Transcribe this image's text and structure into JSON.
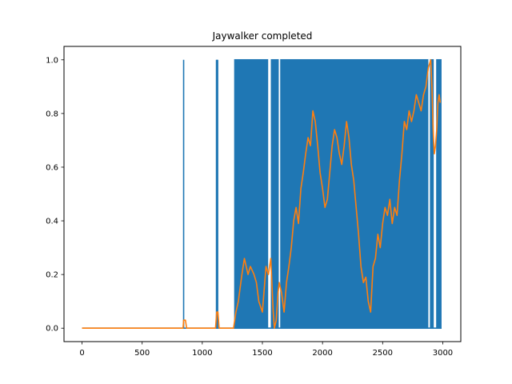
{
  "chart_data": {
    "type": "line",
    "title": "Jaywalker completed",
    "xlabel": "",
    "ylabel": "",
    "xlim": [
      -150,
      3150
    ],
    "ylim": [
      -0.05,
      1.05
    ],
    "x_ticks": [
      0,
      500,
      1000,
      1500,
      2000,
      2500,
      3000
    ],
    "x_tick_labels": [
      "0",
      "500",
      "1000",
      "1500",
      "2000",
      "2500",
      "3000"
    ],
    "y_ticks": [
      0.0,
      0.2,
      0.4,
      0.6,
      0.8,
      1.0
    ],
    "y_tick_labels": [
      "0.0",
      "0.2",
      "0.4",
      "0.6",
      "0.8",
      "1.0"
    ],
    "grid": false,
    "legend": "none",
    "series": [
      {
        "color": "#1f77b4",
        "style": "binary spikes (0/1 per episode)",
        "x_range": [
          0,
          2990
        ],
        "spikes_at": [
          845,
          1118,
          1123,
          1128
        ],
        "dense_regions": [
          [
            1265,
            1548
          ],
          [
            1570,
            1636
          ],
          [
            1648,
            2880
          ],
          [
            2893,
            2925
          ],
          [
            2945,
            2990
          ]
        ],
        "gaps": [
          [
            1548,
            1570
          ],
          [
            1636,
            1648
          ],
          [
            2880,
            2893
          ],
          [
            2925,
            2945
          ]
        ]
      },
      {
        "color": "#ff7f0e",
        "style": "moving average",
        "x": [
          0,
          840,
          845,
          860,
          870,
          1110,
          1120,
          1130,
          1140,
          1260,
          1280,
          1300,
          1330,
          1350,
          1380,
          1400,
          1430,
          1450,
          1470,
          1500,
          1530,
          1550,
          1570,
          1590,
          1600,
          1615,
          1630,
          1640,
          1660,
          1680,
          1700,
          1720,
          1740,
          1760,
          1780,
          1800,
          1820,
          1840,
          1860,
          1880,
          1900,
          1920,
          1940,
          1960,
          1980,
          2000,
          2020,
          2040,
          2060,
          2080,
          2100,
          2120,
          2140,
          2160,
          2180,
          2200,
          2220,
          2240,
          2260,
          2280,
          2300,
          2320,
          2340,
          2360,
          2380,
          2400,
          2420,
          2440,
          2460,
          2480,
          2500,
          2520,
          2540,
          2560,
          2580,
          2600,
          2620,
          2640,
          2660,
          2680,
          2700,
          2720,
          2740,
          2760,
          2780,
          2800,
          2820,
          2840,
          2860,
          2880,
          2900,
          2910,
          2920,
          2930,
          2940,
          2950,
          2960,
          2970,
          2980
        ],
        "y": [
          0.0,
          0.0,
          0.03,
          0.03,
          0.0,
          0.0,
          0.06,
          0.06,
          0.0,
          0.0,
          0.06,
          0.1,
          0.2,
          0.26,
          0.2,
          0.23,
          0.2,
          0.17,
          0.1,
          0.06,
          0.23,
          0.2,
          0.26,
          0.06,
          0.0,
          0.03,
          0.13,
          0.17,
          0.13,
          0.06,
          0.17,
          0.23,
          0.3,
          0.4,
          0.45,
          0.39,
          0.52,
          0.58,
          0.65,
          0.71,
          0.68,
          0.81,
          0.77,
          0.68,
          0.58,
          0.52,
          0.45,
          0.48,
          0.58,
          0.68,
          0.74,
          0.71,
          0.65,
          0.61,
          0.68,
          0.77,
          0.71,
          0.61,
          0.55,
          0.45,
          0.35,
          0.23,
          0.17,
          0.19,
          0.1,
          0.06,
          0.23,
          0.26,
          0.35,
          0.3,
          0.39,
          0.45,
          0.42,
          0.48,
          0.39,
          0.45,
          0.42,
          0.55,
          0.65,
          0.77,
          0.74,
          0.81,
          0.77,
          0.81,
          0.87,
          0.84,
          0.81,
          0.87,
          0.9,
          0.97,
          1.0,
          0.9,
          0.74,
          0.65,
          0.68,
          0.74,
          0.84,
          0.87,
          0.84
        ]
      }
    ]
  }
}
